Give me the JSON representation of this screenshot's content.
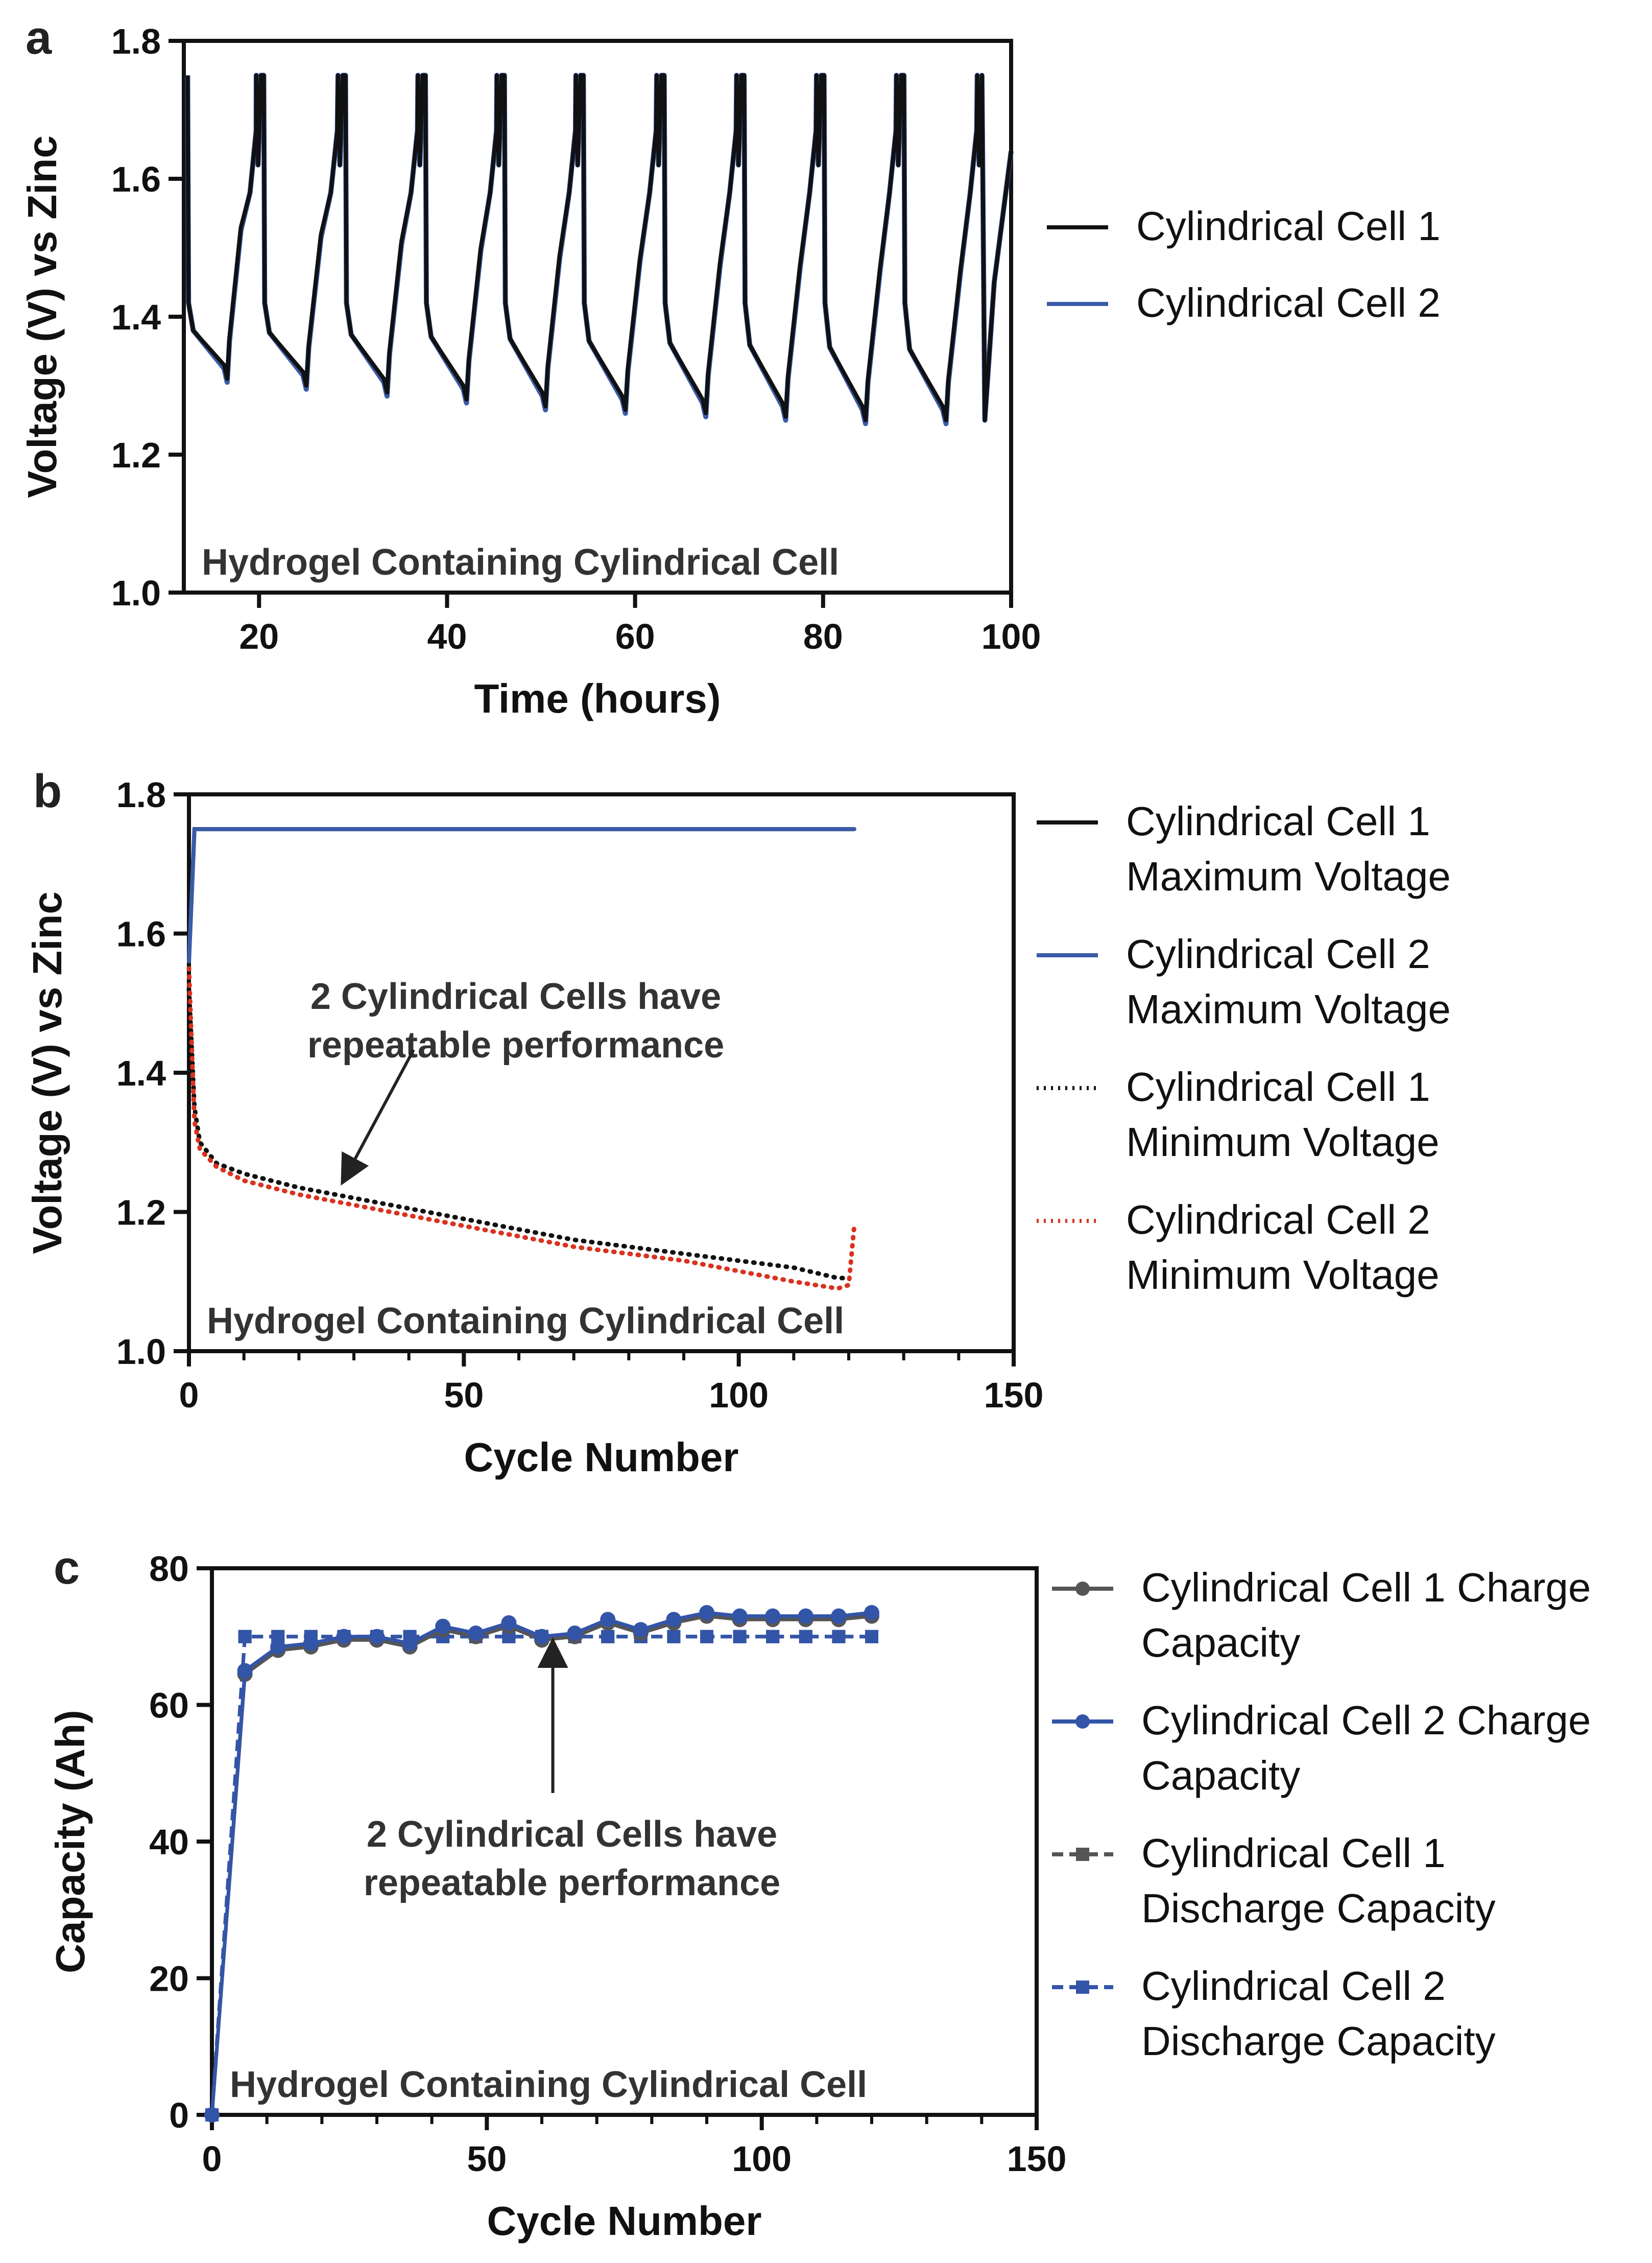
{
  "chart_data": [
    {
      "panel": "a",
      "type": "line",
      "title": "Hydrogel Containing Cylindrical Cell",
      "xlabel": "Time (hours)",
      "ylabel": "Voltage (V) vs Zinc",
      "xlim": [
        12,
        100
      ],
      "ylim": [
        1.0,
        1.8
      ],
      "xticks": [
        20,
        40,
        60,
        80,
        100
      ],
      "yticks": [
        1.0,
        1.2,
        1.4,
        1.6,
        1.8
      ],
      "tick_labels_y": [
        "1.0",
        "1.2",
        "1.4",
        "1.6",
        "1.8"
      ],
      "legend_position": "right",
      "colors": {
        "cell1": "#111111",
        "cell2": "#3a5ba8"
      },
      "cycle": {
        "starts": [
          20.5,
          29.2,
          37.7,
          46.1,
          54.5,
          63.1,
          71.6,
          80.1,
          88.6,
          97.2
        ],
        "ends": [
          12.4,
          20.5,
          29.2,
          37.7,
          46.1,
          54.5,
          63.1,
          71.6,
          80.1,
          88.6
        ],
        "min_voltage_cell1": [
          1.31,
          1.3,
          1.29,
          1.28,
          1.27,
          1.265,
          1.26,
          1.255,
          1.25,
          1.25
        ],
        "min_voltage_cell2": [
          1.305,
          1.295,
          1.285,
          1.275,
          1.265,
          1.26,
          1.255,
          1.25,
          1.245,
          1.245
        ],
        "max_voltage": 1.75
      },
      "series": [
        {
          "name": "Cylindrical Cell 1"
        },
        {
          "name": "Cylindrical Cell 2"
        }
      ]
    },
    {
      "panel": "b",
      "type": "line",
      "title": "Hydrogel Containing Cylindrical Cell",
      "xlabel": "Cycle Number",
      "ylabel": "Voltage (V) vs Zinc",
      "xlim": [
        0,
        150
      ],
      "ylim": [
        1.0,
        1.8
      ],
      "xticks": [
        0,
        50,
        100,
        150
      ],
      "yticks": [
        1.0,
        1.2,
        1.4,
        1.6,
        1.8
      ],
      "tick_labels_y": [
        "1.0",
        "1.2",
        "1.4",
        "1.6",
        "1.8"
      ],
      "annotation": [
        "2 Cylindrical Cells have",
        "repeatable performance"
      ],
      "annotation_target": [
        30,
        1.22
      ],
      "legend_position": "right",
      "series": [
        {
          "name": [
            "Cylindrical Cell 1",
            "Maximum Voltage"
          ],
          "color": "#111111",
          "dash": "solid",
          "x": [
            0,
            1,
            121
          ],
          "y": [
            1.56,
            1.75,
            1.75
          ]
        },
        {
          "name": [
            "Cylindrical Cell 2",
            "Maximum Voltage"
          ],
          "color": "#3a5ba8",
          "dash": "solid",
          "x": [
            0,
            1,
            121
          ],
          "y": [
            1.56,
            1.75,
            1.75
          ]
        },
        {
          "name": [
            "Cylindrical Cell 1",
            "Minimum Voltage"
          ],
          "color": "#111111",
          "dash": "dotted",
          "x": [
            0,
            1,
            2,
            5,
            10,
            20,
            30,
            40,
            50,
            60,
            70,
            80,
            90,
            100,
            110,
            118,
            120
          ],
          "y": [
            1.52,
            1.35,
            1.3,
            1.27,
            1.255,
            1.235,
            1.22,
            1.205,
            1.19,
            1.175,
            1.16,
            1.15,
            1.14,
            1.13,
            1.12,
            1.105,
            1.105
          ]
        },
        {
          "name": [
            "Cylindrical Cell 2",
            "Minimum Voltage"
          ],
          "color": "#d9321f",
          "dash": "dotted",
          "x": [
            0,
            1,
            2,
            5,
            10,
            20,
            30,
            40,
            50,
            60,
            70,
            80,
            90,
            100,
            110,
            118,
            120,
            121
          ],
          "y": [
            1.55,
            1.33,
            1.29,
            1.265,
            1.245,
            1.225,
            1.21,
            1.195,
            1.18,
            1.165,
            1.15,
            1.14,
            1.13,
            1.115,
            1.1,
            1.09,
            1.095,
            1.18
          ]
        }
      ]
    },
    {
      "panel": "c",
      "type": "line",
      "title": "Hydrogel Containing Cylindrical Cell",
      "xlabel": "Cycle Number",
      "ylabel": "Capacity (Ah)",
      "xlim": [
        0,
        150
      ],
      "ylim": [
        0,
        80
      ],
      "xticks": [
        0,
        50,
        100,
        150
      ],
      "yticks": [
        0,
        20,
        40,
        60,
        80
      ],
      "tick_labels_y": [
        "0",
        "20",
        "40",
        "60",
        "80"
      ],
      "annotation": [
        "2 Cylindrical Cells have",
        "repeatable performance"
      ],
      "annotation_target": [
        62,
        72
      ],
      "legend_position": "right",
      "series": [
        {
          "name": [
            "Cylindrical Cell 1 Charge",
            "Capacity"
          ],
          "color": "#555555",
          "dash": "solid",
          "marker": "circle",
          "x": [
            0,
            6,
            12,
            18,
            24,
            30,
            36,
            42,
            48,
            54,
            60,
            66,
            72,
            78,
            84,
            90,
            96,
            102,
            108,
            114,
            120
          ],
          "y": [
            0,
            64.5,
            68.0,
            68.5,
            69.5,
            69.5,
            68.5,
            71.0,
            70.0,
            71.5,
            69.5,
            70.0,
            72.0,
            70.5,
            72.0,
            73.0,
            72.5,
            72.5,
            72.5,
            72.5,
            73.0
          ]
        },
        {
          "name": [
            "Cylindrical Cell 2 Charge",
            "Capacity"
          ],
          "color": "#3355a8",
          "dash": "solid",
          "marker": "circle",
          "x": [
            0,
            6,
            12,
            18,
            24,
            30,
            36,
            42,
            48,
            54,
            60,
            66,
            72,
            78,
            84,
            90,
            96,
            102,
            108,
            114,
            120
          ],
          "y": [
            0,
            65.0,
            68.5,
            69.0,
            70.0,
            70.0,
            69.0,
            71.5,
            70.5,
            72.0,
            70.0,
            70.5,
            72.5,
            71.0,
            72.5,
            73.5,
            73.0,
            73.0,
            73.0,
            73.0,
            73.5
          ]
        },
        {
          "name": [
            "Cylindrical Cell 1",
            "Discharge Capacity"
          ],
          "color": "#555555",
          "dash": "dashed",
          "marker": "square",
          "x": [
            0,
            6,
            12,
            18,
            24,
            30,
            36,
            42,
            48,
            54,
            60,
            66,
            72,
            78,
            84,
            90,
            96,
            102,
            108,
            114,
            120
          ],
          "y": [
            0,
            70,
            70,
            70,
            70,
            70,
            70,
            70,
            70,
            70,
            70,
            70,
            70,
            70,
            70,
            70,
            70,
            70,
            70,
            70,
            70
          ]
        },
        {
          "name": [
            "Cylindrical Cell 2",
            "Discharge Capacity"
          ],
          "color": "#3355a8",
          "dash": "dashed",
          "marker": "square",
          "x": [
            0,
            6,
            12,
            18,
            24,
            30,
            36,
            42,
            48,
            54,
            60,
            66,
            72,
            78,
            84,
            90,
            96,
            102,
            108,
            114,
            120
          ],
          "y": [
            0,
            70,
            70,
            70,
            70,
            70,
            70,
            70,
            70,
            70,
            70,
            70,
            70,
            70,
            70,
            70,
            70,
            70,
            70,
            70,
            70
          ]
        }
      ]
    }
  ]
}
